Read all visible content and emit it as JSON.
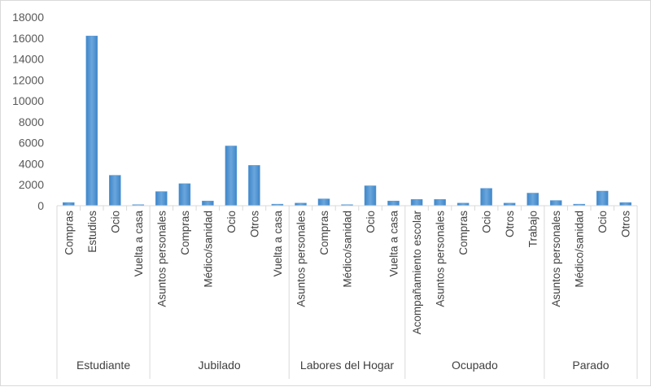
{
  "chart_data": {
    "type": "bar",
    "title": "",
    "xlabel": "",
    "ylabel": "",
    "ylim": [
      0,
      18000
    ],
    "yticks": [
      "0",
      "2000",
      "4000",
      "6000",
      "8000",
      "10000",
      "12000",
      "14000",
      "16000",
      "18000"
    ],
    "grid": false,
    "legend": "none",
    "bar_color": "#5b9bd5",
    "groups": [
      {
        "name": "Estudiante",
        "categories": [
          "Compras",
          "Estudios",
          "Ocio",
          "Vuelta a casa"
        ],
        "values": [
          300,
          16200,
          2900,
          100
        ]
      },
      {
        "name": "Jubilado",
        "categories": [
          "Asuntos personales",
          "Compras",
          "Médico/sanidad",
          "Ocio",
          "Otros",
          "Vuelta a casa"
        ],
        "values": [
          1350,
          2100,
          450,
          5700,
          3850,
          150
        ]
      },
      {
        "name": "Labores del Hogar",
        "categories": [
          "Asuntos personales",
          "Compras",
          "Médico/sanidad",
          "Ocio",
          "Vuelta a casa"
        ],
        "values": [
          250,
          650,
          100,
          1900,
          450
        ]
      },
      {
        "name": "Ocupado",
        "categories": [
          "Acompañamiento escolar",
          "Asuntos personales",
          "Compras",
          "Ocio",
          "Otros",
          "Trabajo"
        ],
        "values": [
          600,
          600,
          250,
          1650,
          250,
          1200
        ]
      },
      {
        "name": "Parado",
        "categories": [
          "Asuntos personales",
          "Médico/sanidad",
          "Ocio",
          "Otros"
        ],
        "values": [
          500,
          150,
          1400,
          300
        ]
      }
    ]
  }
}
